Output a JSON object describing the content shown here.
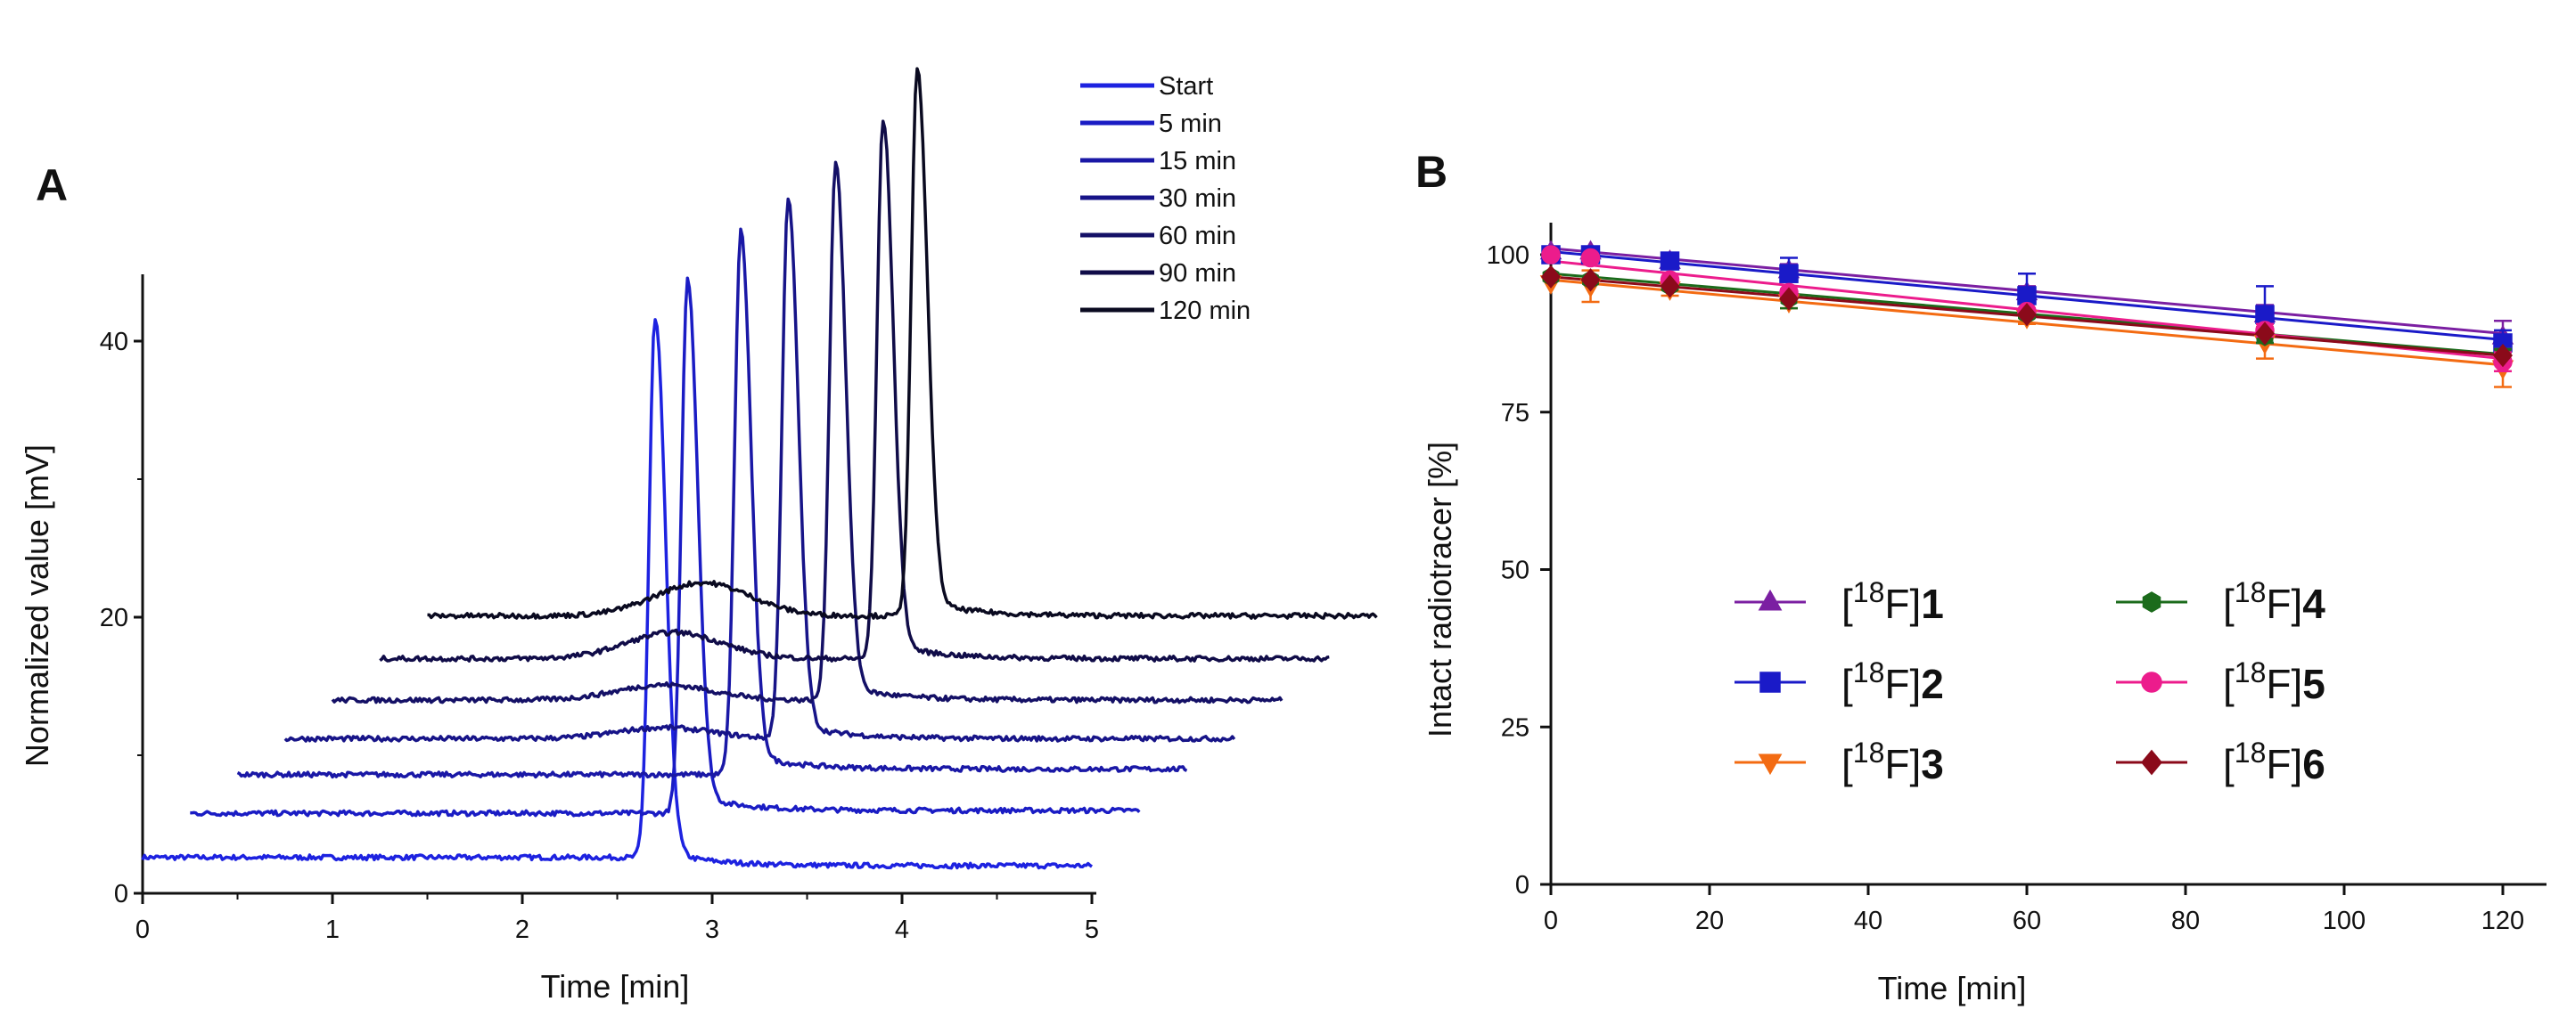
{
  "chart_data": [
    {
      "panel": "A",
      "type": "line",
      "title": "",
      "xlabel": "Time [min]",
      "ylabel": "Normalized value [mV]",
      "xlim": [
        0,
        5
      ],
      "ylim": [
        0,
        45
      ],
      "x_ticks": [
        "0",
        "1",
        "2",
        "3",
        "4",
        "5"
      ],
      "y_ticks": [
        "0",
        "20",
        "40"
      ],
      "grid": false,
      "legend_position": "top-right",
      "note": "Chromatograms stacked with a waterfall offset of 0.25 min and 3 mV per trace",
      "offset_per_trace": {
        "x": 0.25,
        "y": 3
      },
      "series": [
        {
          "name": "Start",
          "color": "#1d22e0",
          "baseline": 2.6,
          "peak_time": 2.7,
          "peak_height": 39.5,
          "end_baseline": 2.0
        },
        {
          "name": "5 min",
          "color": "#1a1cc4",
          "baseline": 2.8,
          "peak_time": 2.62,
          "peak_height": 38.5,
          "end_baseline": 3.0
        },
        {
          "name": "15 min",
          "color": "#1a18a6",
          "baseline": 2.6,
          "peak_time": 2.65,
          "peak_height": 39.0,
          "end_baseline": 3.0
        },
        {
          "name": "30 min",
          "color": "#171488",
          "baseline": 2.2,
          "peak_time": 2.65,
          "peak_height": 39.0,
          "end_baseline": 2.2,
          "hump_time": 2.0,
          "hump_height": 0.8
        },
        {
          "name": "60 min",
          "color": "#141066",
          "baseline": 2.0,
          "peak_time": 2.65,
          "peak_height": 39.0,
          "end_baseline": 2.0,
          "hump_time": 1.75,
          "hump_height": 1.1
        },
        {
          "name": "90 min",
          "color": "#100c48",
          "baseline": 2.0,
          "peak_time": 2.65,
          "peak_height": 39.0,
          "end_baseline": 2.0,
          "hump_time": 1.55,
          "hump_height": 1.9
        },
        {
          "name": "120 min",
          "color": "#0a0a20",
          "baseline": 2.1,
          "peak_time": 2.58,
          "peak_height": 39.5,
          "end_baseline": 2.1,
          "hump_time": 1.45,
          "hump_height": 2.4
        }
      ]
    },
    {
      "panel": "B",
      "type": "scatter",
      "title": "",
      "xlabel": "Time [min]",
      "ylabel": "Intact radiotracer [%]",
      "xlim": [
        0,
        125
      ],
      "ylim": [
        0,
        105
      ],
      "x_ticks": [
        "0",
        "20",
        "40",
        "60",
        "80",
        "100",
        "120"
      ],
      "y_ticks": [
        "0",
        "25",
        "50",
        "75",
        "100"
      ],
      "grid": false,
      "legend_position": "center",
      "x": [
        0,
        5,
        15,
        30,
        60,
        90,
        120
      ],
      "series": [
        {
          "name": "1",
          "label_prefix": "[",
          "label_sup": "18",
          "label_mid": "F]",
          "label_bold": "1",
          "color": "#7b1fa2",
          "marker": "triangle-up",
          "values": [
            100.5,
            100.5,
            99,
            97.5,
            94,
            90.5,
            87
          ],
          "errors": [
            0,
            0,
            0,
            1,
            1,
            1.5,
            2.5
          ]
        },
        {
          "name": "2",
          "label_prefix": "[",
          "label_sup": "18",
          "label_mid": "F]",
          "label_bold": "2",
          "color": "#1a1ac8",
          "marker": "square",
          "values": [
            100,
            100,
            99,
            97,
            93.5,
            90.5,
            86
          ],
          "errors": [
            0,
            0.5,
            1,
            2.5,
            3.5,
            4.5,
            2
          ]
        },
        {
          "name": "3",
          "label_prefix": "[",
          "label_sup": "18",
          "label_mid": "F]",
          "label_bold": "3",
          "color": "#f36b12",
          "marker": "triangle-down",
          "values": [
            95.5,
            95,
            94.5,
            92.5,
            90,
            86,
            82
          ],
          "errors": [
            0,
            2.5,
            1,
            1,
            1,
            2.5,
            3
          ]
        },
        {
          "name": "4",
          "label_prefix": "[",
          "label_sup": "18",
          "label_mid": "F]",
          "label_bold": "4",
          "color": "#1b6b1b",
          "marker": "hexagon",
          "values": [
            96.5,
            96,
            95,
            93,
            90.5,
            87,
            84
          ],
          "errors": [
            0,
            0,
            0.5,
            1.5,
            0.5,
            1,
            1
          ]
        },
        {
          "name": "5",
          "label_prefix": "[",
          "label_sup": "18",
          "label_mid": "F]",
          "label_bold": "5",
          "color": "#ec1c8c",
          "marker": "circle",
          "values": [
            100,
            99.5,
            96,
            94,
            91,
            88,
            83
          ],
          "errors": [
            0,
            0,
            0.5,
            0.5,
            0.5,
            1,
            1.5
          ]
        },
        {
          "name": "6",
          "label_prefix": "[",
          "label_sup": "18",
          "label_mid": "F]",
          "label_bold": "6",
          "color": "#8b0a1a",
          "marker": "diamond",
          "values": [
            96.5,
            96,
            95,
            93,
            90.5,
            87.5,
            84
          ],
          "errors": [
            0,
            0,
            0,
            0,
            0,
            0,
            0
          ]
        }
      ],
      "fit_lines": [
        {
          "series": "1",
          "y0": 101,
          "y120": 87.5
        },
        {
          "series": "2",
          "y0": 100.5,
          "y120": 86.5
        },
        {
          "series": "3",
          "y0": 96,
          "y120": 82.5
        },
        {
          "series": "4",
          "y0": 97,
          "y120": 84.2
        },
        {
          "series": "5",
          "y0": 99,
          "y120": 83.5
        },
        {
          "series": "6",
          "y0": 96.5,
          "y120": 84
        }
      ]
    }
  ],
  "panels": {
    "a_label": "A",
    "b_label": "B"
  }
}
